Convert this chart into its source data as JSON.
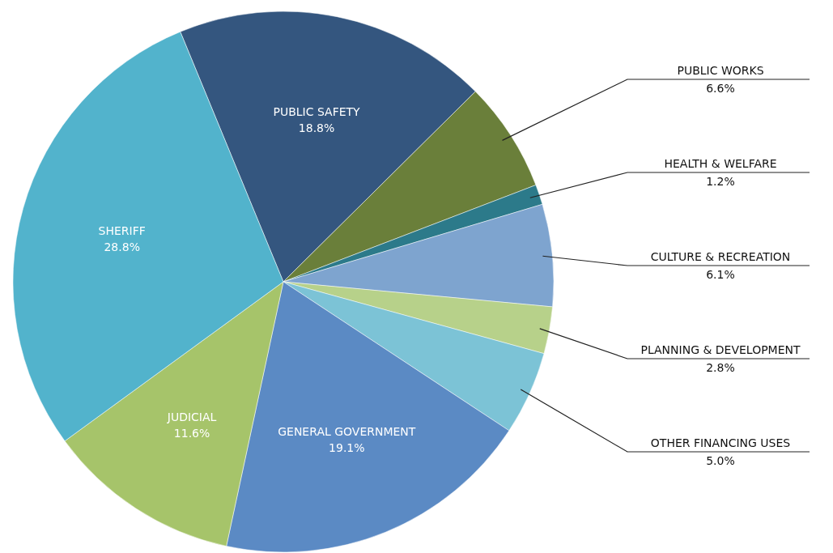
{
  "chart_data": {
    "type": "pie",
    "categories": [
      "PUBLIC SAFETY",
      "PUBLIC WORKS",
      "HEALTH & WELFARE",
      "CULTURE & RECREATION",
      "PLANNING & DEVELOPMENT",
      "OTHER FINANCING USES",
      "GENERAL GOVERNMENT",
      "JUDICIAL",
      "SHERIFF"
    ],
    "values": [
      18.8,
      6.6,
      1.2,
      6.1,
      2.8,
      5.0,
      19.1,
      11.6,
      28.8
    ],
    "value_labels": [
      "18.8%",
      "6.6%",
      "1.2%",
      "6.1%",
      "2.8%",
      "5.0%",
      "19.1%",
      "11.6%",
      "28.8%"
    ],
    "colors": [
      "#34567f",
      "#6a7f3a",
      "#2c7a8a",
      "#7ea4cf",
      "#b7d18a",
      "#7cc3d6",
      "#5b8ac4",
      "#a6c46a",
      "#52b3cc"
    ]
  }
}
